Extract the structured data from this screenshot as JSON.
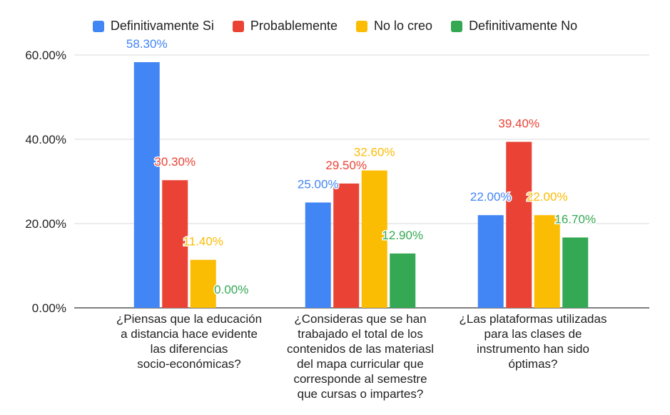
{
  "chart_data": {
    "type": "bar",
    "title": "",
    "xlabel": "",
    "ylabel": "",
    "ylim": [
      0,
      60
    ],
    "yticks": [
      "0.00%",
      "20.00%",
      "40.00%",
      "60.00%"
    ],
    "ytick_values": [
      0,
      20,
      40,
      60
    ],
    "grid": true,
    "legend_position": "top",
    "categories": [
      "¿Piensas que la educación a distancia hace evidente las diferencias socio-económicas?",
      "¿Consideras que se han trabajado el total de los contenidos de las materiasl del mapa curricular que corresponde al semestre que cursas o impartes?",
      "¿Las plataformas utilizadas para las clases de instrumento han sido óptimas?"
    ],
    "category_lines": [
      [
        "¿Piensas que la educación",
        "a distancia hace evidente",
        "las diferencias",
        "socio-económicas?"
      ],
      [
        "¿Consideras que se han",
        "trabajado el total de los",
        "contenidos de las materiasl",
        "del mapa curricular que",
        "corresponde al semestre",
        "que cursas o impartes?"
      ],
      [
        "¿Las plataformas utilizadas",
        "para las clases de",
        "instrumento han sido",
        "óptimas?"
      ]
    ],
    "series": [
      {
        "name": "Definitivamente Si",
        "color": "#4285F4",
        "values": [
          58.3,
          25.0,
          22.0
        ],
        "labels": [
          "58.30%",
          "25.00%",
          "22.00%"
        ]
      },
      {
        "name": "Probablemente",
        "color": "#EA4335",
        "values": [
          30.3,
          29.5,
          39.4
        ],
        "labels": [
          "30.30%",
          "29.50%",
          "39.40%"
        ]
      },
      {
        "name": "No lo creo",
        "color": "#FBBC04",
        "values": [
          11.4,
          32.6,
          22.0
        ],
        "labels": [
          "11.40%",
          "32.60%",
          "22.00%"
        ]
      },
      {
        "name": "Definitivamente No",
        "color": "#34A853",
        "values": [
          0.0,
          12.9,
          16.7
        ],
        "labels": [
          "0.00%",
          "12.90%",
          "16.70%"
        ]
      }
    ]
  }
}
